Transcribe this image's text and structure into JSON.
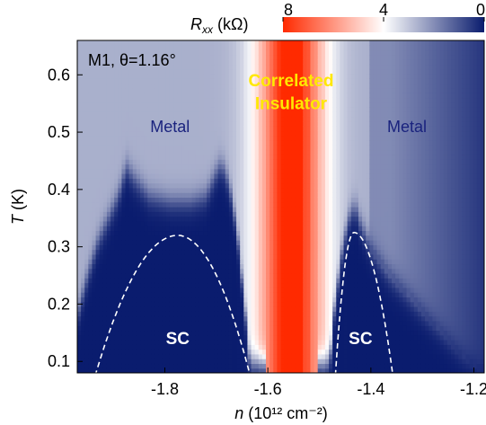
{
  "chart_data": {
    "type": "heatmap",
    "sample_label": "M1, θ=1.16°",
    "xlabel_var": "n",
    "xlabel_unit": "(10¹² cm⁻²)",
    "ylabel_var": "T",
    "ylabel_unit": "(K)",
    "x_range": [
      -1.97,
      -1.18
    ],
    "y_range": [
      0.08,
      0.66
    ],
    "x_ticks": [
      -1.8,
      -1.6,
      -1.4,
      -1.2
    ],
    "x_tick_labels": [
      "-1.8",
      "-1.6",
      "-1.4",
      "-1.2"
    ],
    "y_ticks": [
      0.1,
      0.2,
      0.3,
      0.4,
      0.5,
      0.6
    ],
    "y_tick_labels": [
      "0.1",
      "0.2",
      "0.3",
      "0.4",
      "0.5",
      "0.6"
    ],
    "colorbar": {
      "label_var": "R",
      "label_sub": "xx",
      "label_unit": "(kΩ)",
      "range": [
        8,
        0
      ],
      "ticks": [
        8,
        4,
        0
      ],
      "tick_labels": [
        "8",
        "4",
        "0"
      ],
      "colors": {
        "high": "#ff2a00",
        "mid": "#ffffff",
        "low": "#0a1c6e"
      }
    },
    "regions": [
      {
        "text": "Metal",
        "n": -1.79,
        "T": 0.5,
        "color": "#1a237e"
      },
      {
        "text": "Metal",
        "n": -1.33,
        "T": 0.5,
        "color": "#1a237e"
      },
      {
        "text": "Correlated",
        "n": -1.555,
        "T": 0.58,
        "color": "#ffe800"
      },
      {
        "text": "Insulator",
        "n": -1.555,
        "T": 0.54,
        "color": "#ffe800"
      },
      {
        "text": "SC",
        "n": -1.775,
        "T": 0.13,
        "color": "#ffffff"
      },
      {
        "text": "SC",
        "n": -1.42,
        "T": 0.13,
        "color": "#ffffff"
      }
    ],
    "sc_domes": [
      {
        "n_min": -1.94,
        "n_max": -1.63,
        "n_peak": -1.775,
        "T_peak": 0.32
      },
      {
        "n_min": -1.47,
        "n_max": -1.355,
        "n_peak": -1.433,
        "T_peak": 0.325
      }
    ],
    "sc_boundary": [
      {
        "n": -1.97,
        "T": 0.18
      },
      {
        "n": -1.95,
        "T": 0.25
      },
      {
        "n": -1.93,
        "T": 0.31
      },
      {
        "n": -1.91,
        "T": 0.35
      },
      {
        "n": -1.89,
        "T": 0.39
      },
      {
        "n": -1.875,
        "T": 0.44
      },
      {
        "n": -1.86,
        "T": 0.42
      },
      {
        "n": -1.83,
        "T": 0.39
      },
      {
        "n": -1.79,
        "T": 0.38
      },
      {
        "n": -1.75,
        "T": 0.38
      },
      {
        "n": -1.72,
        "T": 0.39
      },
      {
        "n": -1.7,
        "T": 0.43
      },
      {
        "n": -1.69,
        "T": 0.445
      },
      {
        "n": -1.675,
        "T": 0.41
      },
      {
        "n": -1.66,
        "T": 0.33
      },
      {
        "n": -1.645,
        "T": 0.2
      },
      {
        "n": -1.635,
        "T": 0.1
      },
      {
        "n": -1.48,
        "T": 0.1
      },
      {
        "n": -1.47,
        "T": 0.2
      },
      {
        "n": -1.455,
        "T": 0.3
      },
      {
        "n": -1.44,
        "T": 0.36
      },
      {
        "n": -1.43,
        "T": 0.37
      },
      {
        "n": -1.42,
        "T": 0.34
      },
      {
        "n": -1.4,
        "T": 0.3
      },
      {
        "n": -1.37,
        "T": 0.26
      },
      {
        "n": -1.33,
        "T": 0.22
      },
      {
        "n": -1.28,
        "T": 0.17
      },
      {
        "n": -1.22,
        "T": 0.11
      },
      {
        "n": -1.19,
        "T": 0.09
      }
    ]
  }
}
